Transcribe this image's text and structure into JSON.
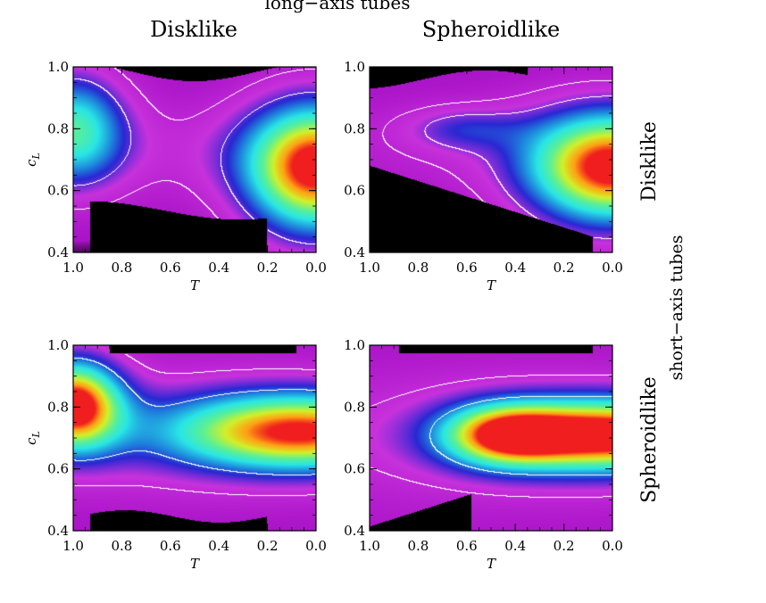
{
  "figure": {
    "top_title": "long−axis tubes",
    "column_titles": [
      "Disklike",
      "Spheroidlike"
    ],
    "row_titles": [
      "Disklike",
      "Spheroidlike"
    ],
    "right_axis_label": "short−axis tubes"
  },
  "chart_data": [
    {
      "type": "heatmap",
      "panel": "long-axis Disklike / short-axis Disklike",
      "xlabel": "T",
      "ylabel": "c_L",
      "xlim": [
        1.0,
        0.0
      ],
      "ylim": [
        0.4,
        1.0
      ],
      "xticks": [
        "1.0",
        "0.8",
        "0.6",
        "0.4",
        "0.2",
        "0.0"
      ],
      "yticks": [
        "0.4",
        "0.6",
        "0.8",
        "1.0"
      ],
      "peaks": [
        {
          "T": 1.0,
          "c_L": 0.8,
          "level": 0.6
        },
        {
          "T": 0.0,
          "c_L": 0.67,
          "level": 1.0
        }
      ],
      "saddle": {
        "T": 0.5,
        "c_L": 0.73,
        "level": 0.12
      },
      "contour_levels": [
        0.12,
        0.3
      ]
    },
    {
      "type": "heatmap",
      "panel": "long-axis Spheroidlike / short-axis Disklike",
      "xlabel": "T",
      "ylabel": "",
      "xlim": [
        1.0,
        0.0
      ],
      "ylim": [
        0.4,
        1.0
      ],
      "xticks": [
        "1.0",
        "0.8",
        "0.6",
        "0.4",
        "0.2",
        "0.0"
      ],
      "yticks": [
        "0.4",
        "0.6",
        "0.8",
        "1.0"
      ],
      "peaks": [
        {
          "T": 0.62,
          "c_L": 0.8,
          "level": 0.3
        },
        {
          "T": 0.0,
          "c_L": 0.67,
          "level": 1.0
        }
      ],
      "contour_levels": [
        0.12,
        0.25
      ]
    },
    {
      "type": "heatmap",
      "panel": "long-axis Disklike / short-axis Spheroidlike",
      "xlabel": "T",
      "ylabel": "c_L",
      "xlim": [
        1.0,
        0.0
      ],
      "ylim": [
        0.4,
        1.0
      ],
      "xticks": [
        "1.0",
        "0.8",
        "0.6",
        "0.4",
        "0.2",
        "0.0"
      ],
      "yticks": [
        "0.4",
        "0.6",
        "0.8",
        "1.0"
      ],
      "peaks": [
        {
          "T": 1.0,
          "c_L": 0.81,
          "level": 0.95
        },
        {
          "T": 0.05,
          "c_L": 0.72,
          "level": 0.85
        }
      ],
      "contour_levels": [
        0.15,
        0.4
      ]
    },
    {
      "type": "heatmap",
      "panel": "long-axis Spheroidlike / short-axis Spheroidlike",
      "xlabel": "T",
      "ylabel": "",
      "xlim": [
        1.0,
        0.0
      ],
      "ylim": [
        0.4,
        1.0
      ],
      "xticks": [
        "1.0",
        "0.8",
        "0.6",
        "0.4",
        "0.2",
        "0.0"
      ],
      "yticks": [
        "0.4",
        "0.6",
        "0.8",
        "1.0"
      ],
      "peaks": [
        {
          "T": 0.0,
          "c_L": 0.71,
          "level": 1.0
        }
      ],
      "contour_levels": [
        0.15,
        0.45
      ]
    }
  ]
}
